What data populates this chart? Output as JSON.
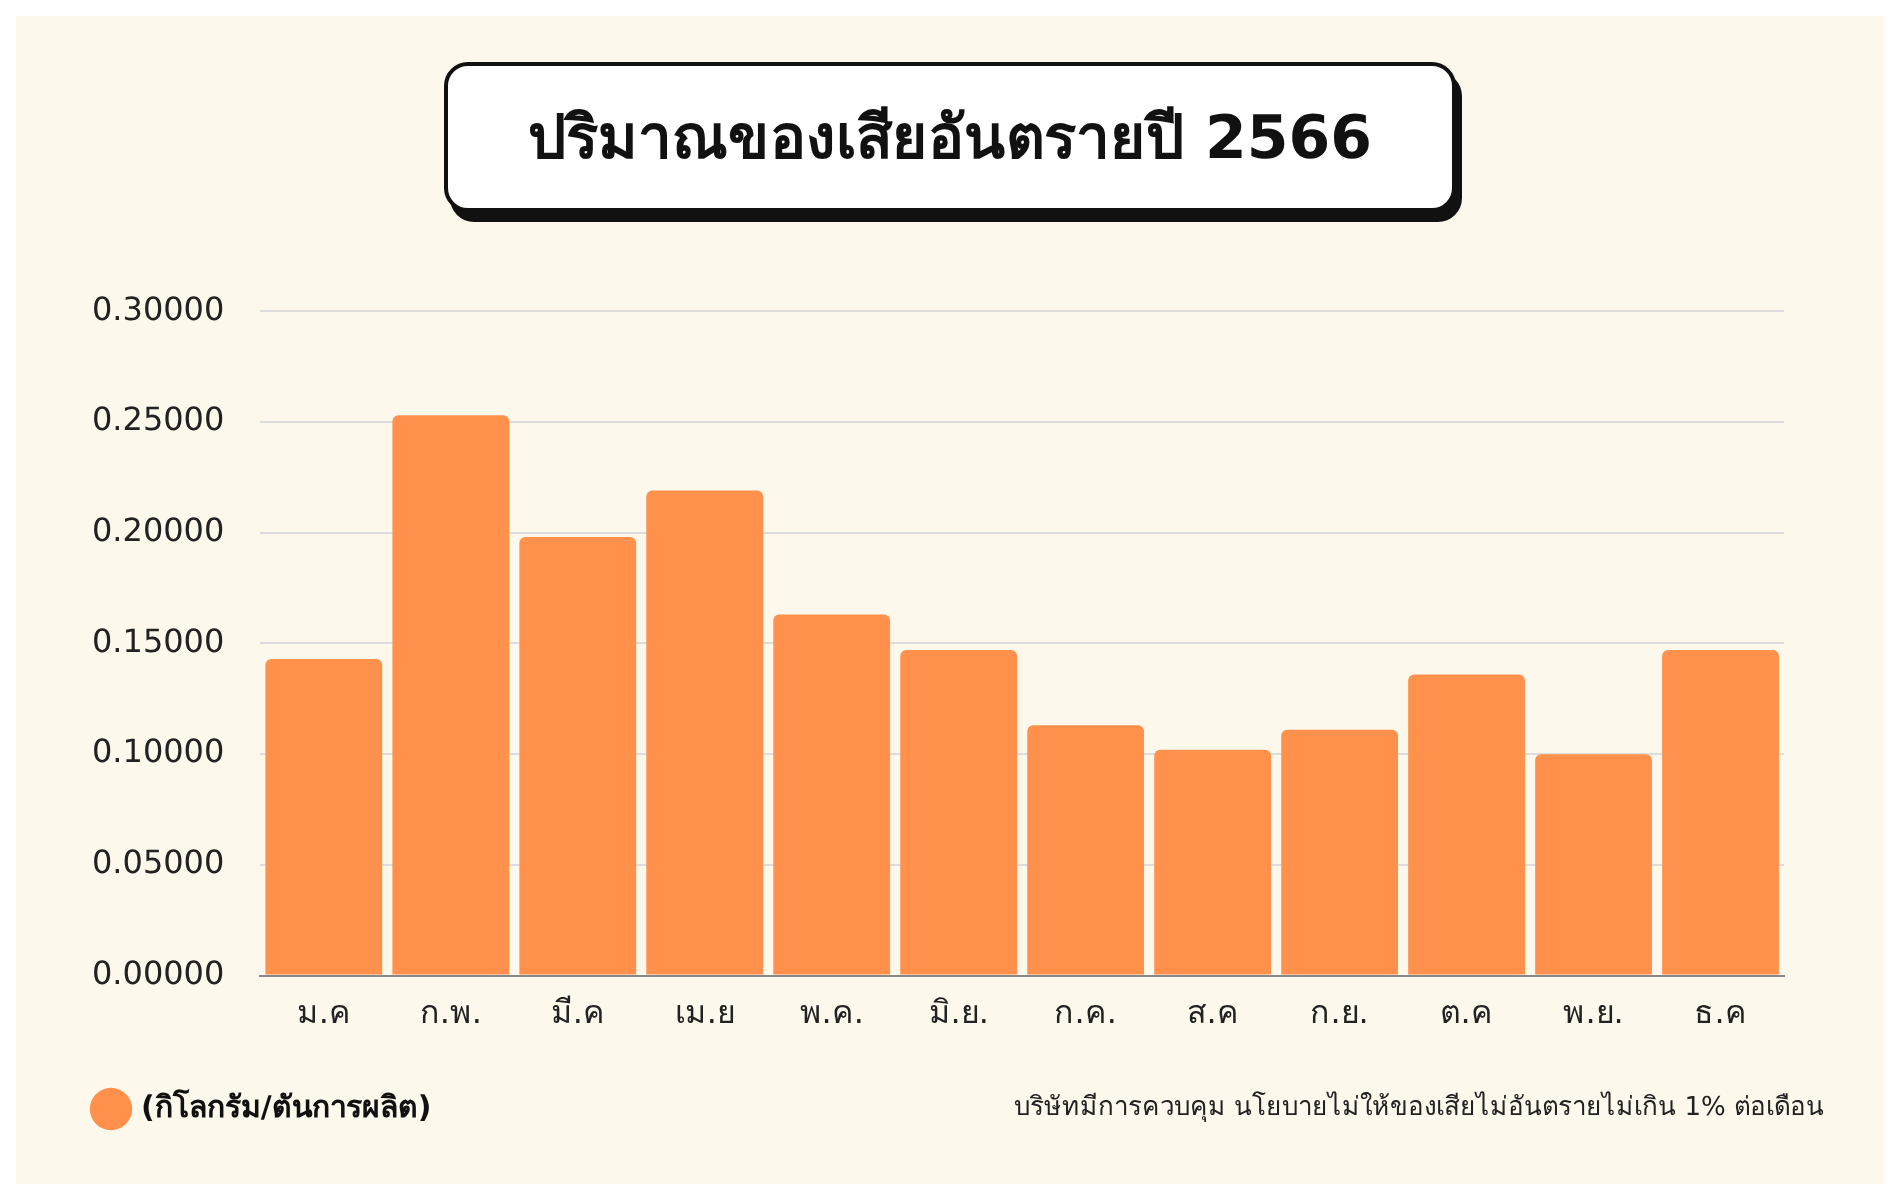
{
  "chart_data": {
    "type": "bar",
    "title": "ปริมาณของเสียอันตรายปี 2566",
    "categories": [
      "ม.ค",
      "ก.พ.",
      "มี.ค",
      "เม.ย",
      "พ.ค.",
      "มิ.ย.",
      "ก.ค.",
      "ส.ค",
      "ก.ย.",
      "ต.ค",
      "พ.ย.",
      "ธ.ค"
    ],
    "series": [
      {
        "name": "(กิโลกรัม/ตันการผลิต)",
        "color": "#ff914d",
        "values": [
          0.143,
          0.253,
          0.198,
          0.219,
          0.163,
          0.147,
          0.113,
          0.102,
          0.111,
          0.136,
          0.1,
          0.147
        ]
      }
    ],
    "ylim": [
      0,
      0.3
    ],
    "yticks": [
      {
        "value": 0,
        "label": "0.00000"
      },
      {
        "value": 0.05,
        "label": "0.05000"
      },
      {
        "value": 0.1,
        "label": "0.10000"
      },
      {
        "value": 0.15,
        "label": "0.15000"
      },
      {
        "value": 0.2,
        "label": "0.20000"
      },
      {
        "value": 0.25,
        "label": "0.25000"
      },
      {
        "value": 0.3,
        "label": "0.30000"
      }
    ],
    "grid": "y",
    "legend": "bottom left",
    "annotations": [
      "บริษัทมีการควบคุม นโยบายไม่ให้ของเสียไม่อันตรายไม่เกิน 1% ต่อเดือน"
    ]
  }
}
